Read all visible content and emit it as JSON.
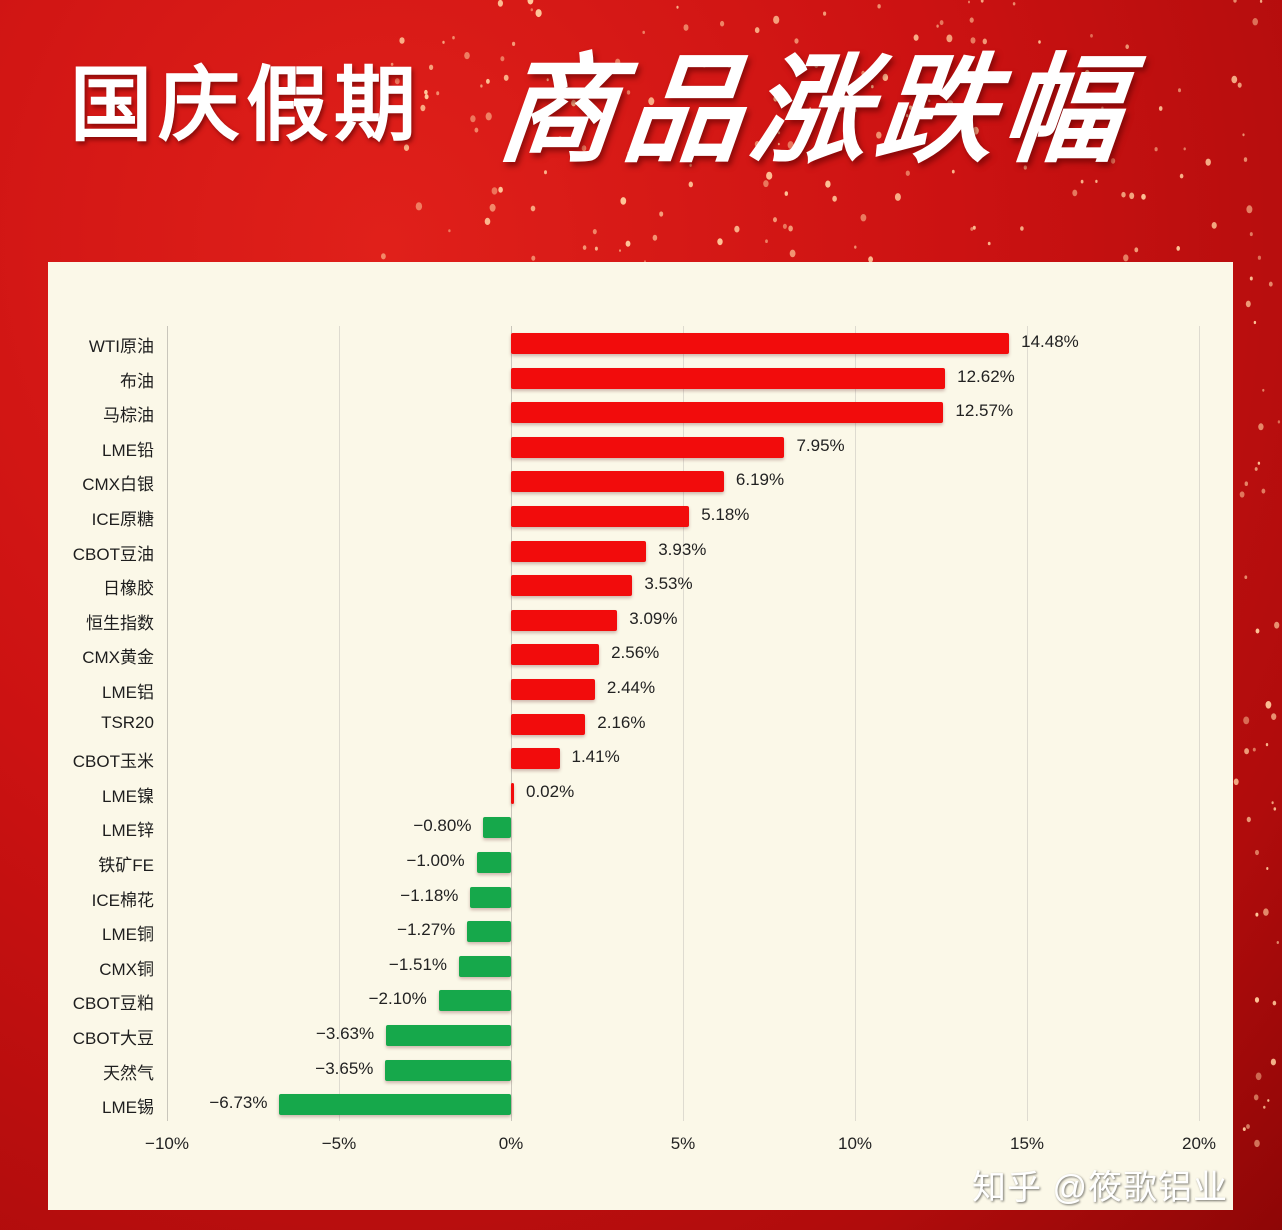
{
  "header": {
    "title_part1": "国庆假期",
    "title_part2": "商品涨跌幅"
  },
  "colors": {
    "background_red": "#cc1212",
    "panel": "#fbf8e8",
    "positive_bar": "#f20c0c",
    "negative_bar": "#16a84b",
    "text": "#222222"
  },
  "watermark": "知乎 @筱歌铝业",
  "chart_data": {
    "type": "bar",
    "orientation": "horizontal",
    "title": "国庆假期商品涨跌幅",
    "xlabel": "",
    "ylabel": "",
    "xlim": [
      -10,
      20
    ],
    "x_ticks": [
      "-10%",
      "-5%",
      "0%",
      "5%",
      "10%",
      "15%",
      "20%"
    ],
    "grid": true,
    "legend": null,
    "categories": [
      "WTI原油",
      "布油",
      "马棕油",
      "LME铅",
      "CMX白银",
      "ICE原糖",
      "CBOT豆油",
      "日橡胶",
      "恒生指数",
      "CMX黄金",
      "LME铝",
      "TSR20",
      "CBOT玉米",
      "LME镍",
      "LME锌",
      "铁矿FE",
      "ICE棉花",
      "LME铜",
      "CMX铜",
      "CBOT豆粕",
      "CBOT大豆",
      "天然气",
      "LME锡"
    ],
    "values": [
      14.48,
      12.62,
      12.57,
      7.95,
      6.19,
      5.18,
      3.93,
      3.53,
      3.09,
      2.56,
      2.44,
      2.16,
      1.41,
      0.02,
      -0.8,
      -1.0,
      -1.18,
      -1.27,
      -1.51,
      -2.1,
      -3.63,
      -3.65,
      -6.73
    ],
    "labels": [
      "14.48%",
      "12.62%",
      "12.57%",
      "7.95%",
      "6.19%",
      "5.18%",
      "3.93%",
      "3.53%",
      "3.09%",
      "2.56%",
      "2.44%",
      "2.16%",
      "1.41%",
      "0.02%",
      "-0.80%",
      "-1.00%",
      "-1.18%",
      "-1.27%",
      "-1.51%",
      "-2.10%",
      "-3.63%",
      "-3.65%",
      "-6.73%"
    ]
  }
}
